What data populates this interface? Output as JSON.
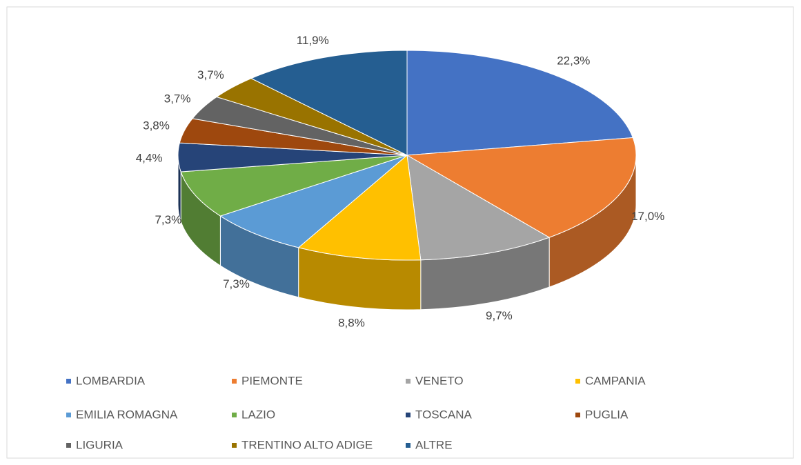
{
  "chart_data": {
    "type": "pie",
    "categories": [
      "LOMBARDIA",
      "PIEMONTE",
      "VENETO",
      "CAMPANIA",
      "EMILIA ROMAGNA",
      "LAZIO",
      "TOSCANA",
      "PUGLIA",
      "LIGURIA",
      "TRENTINO ALTO ADIGE",
      "ALTRE"
    ],
    "values": [
      22.3,
      17.0,
      9.7,
      8.8,
      7.3,
      7.3,
      4.4,
      3.8,
      3.7,
      3.7,
      11.9
    ],
    "value_labels": [
      "22,3%",
      "17,0%",
      "9,7%",
      "8,8%",
      "7,3%",
      "7,3%",
      "4,4%",
      "3,8%",
      "3,7%",
      "3,7%",
      "11,9%"
    ],
    "colors": [
      "#4472c4",
      "#ed7d31",
      "#a5a5a5",
      "#ffc000",
      "#5b9bd5",
      "#70ad47",
      "#264478",
      "#9e480e",
      "#636363",
      "#997300",
      "#255e91"
    ],
    "legend": "bottom"
  }
}
